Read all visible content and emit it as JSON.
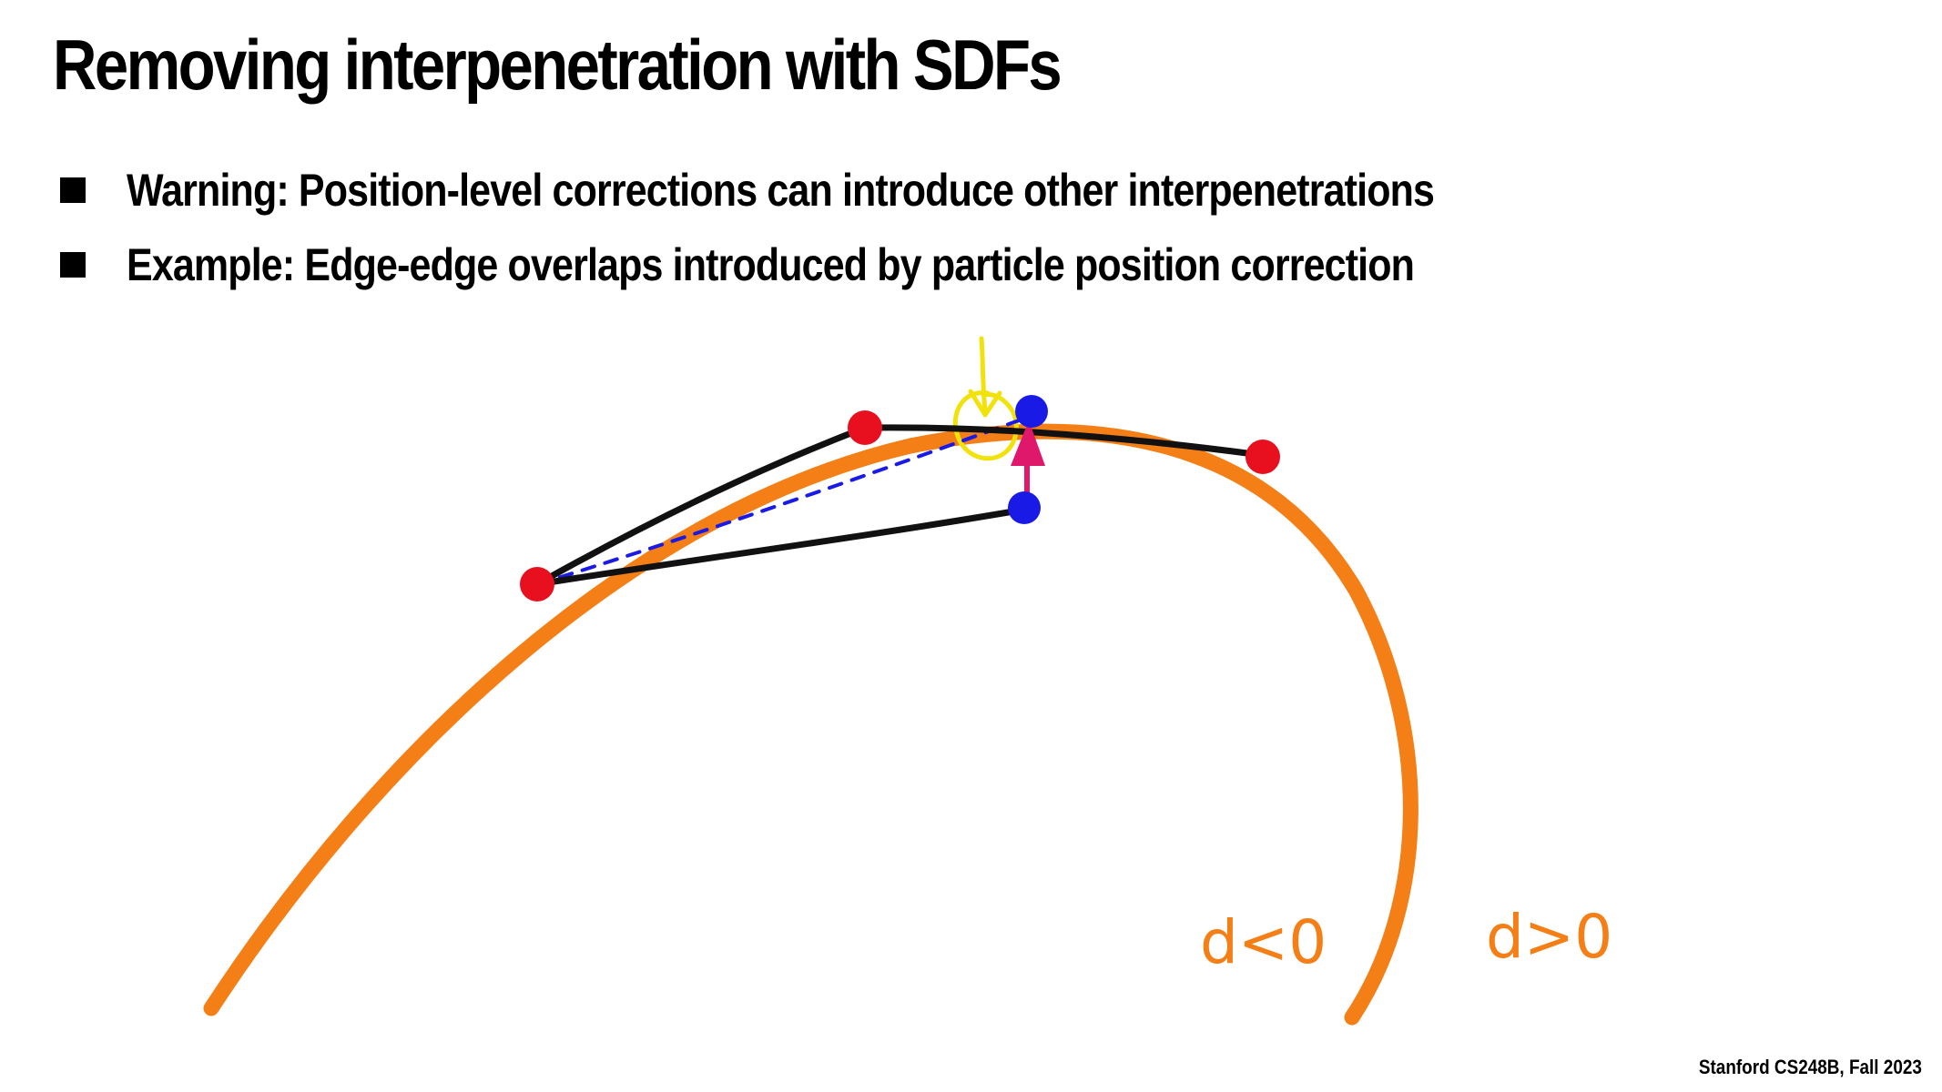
{
  "slide": {
    "title": "Removing interpenetration with SDFs",
    "bullets": [
      "Warning: Position-level corrections can introduce other interpenetrations",
      "Example: Edge-edge overlaps introduced by particle position correction"
    ],
    "footer": "Stanford CS248B, Fall 2023"
  },
  "diagram": {
    "labels": {
      "inside": "d<0",
      "outside": "d>0"
    },
    "colors": {
      "surface": "#f57f17",
      "edge": "#111111",
      "fixed_particle": "#e8101f",
      "moved_particle": "#1a1ae6",
      "correction_arrow": "#e0186c",
      "dashed_edge": "#1a1ae6",
      "highlight": "#f2e20c"
    }
  }
}
